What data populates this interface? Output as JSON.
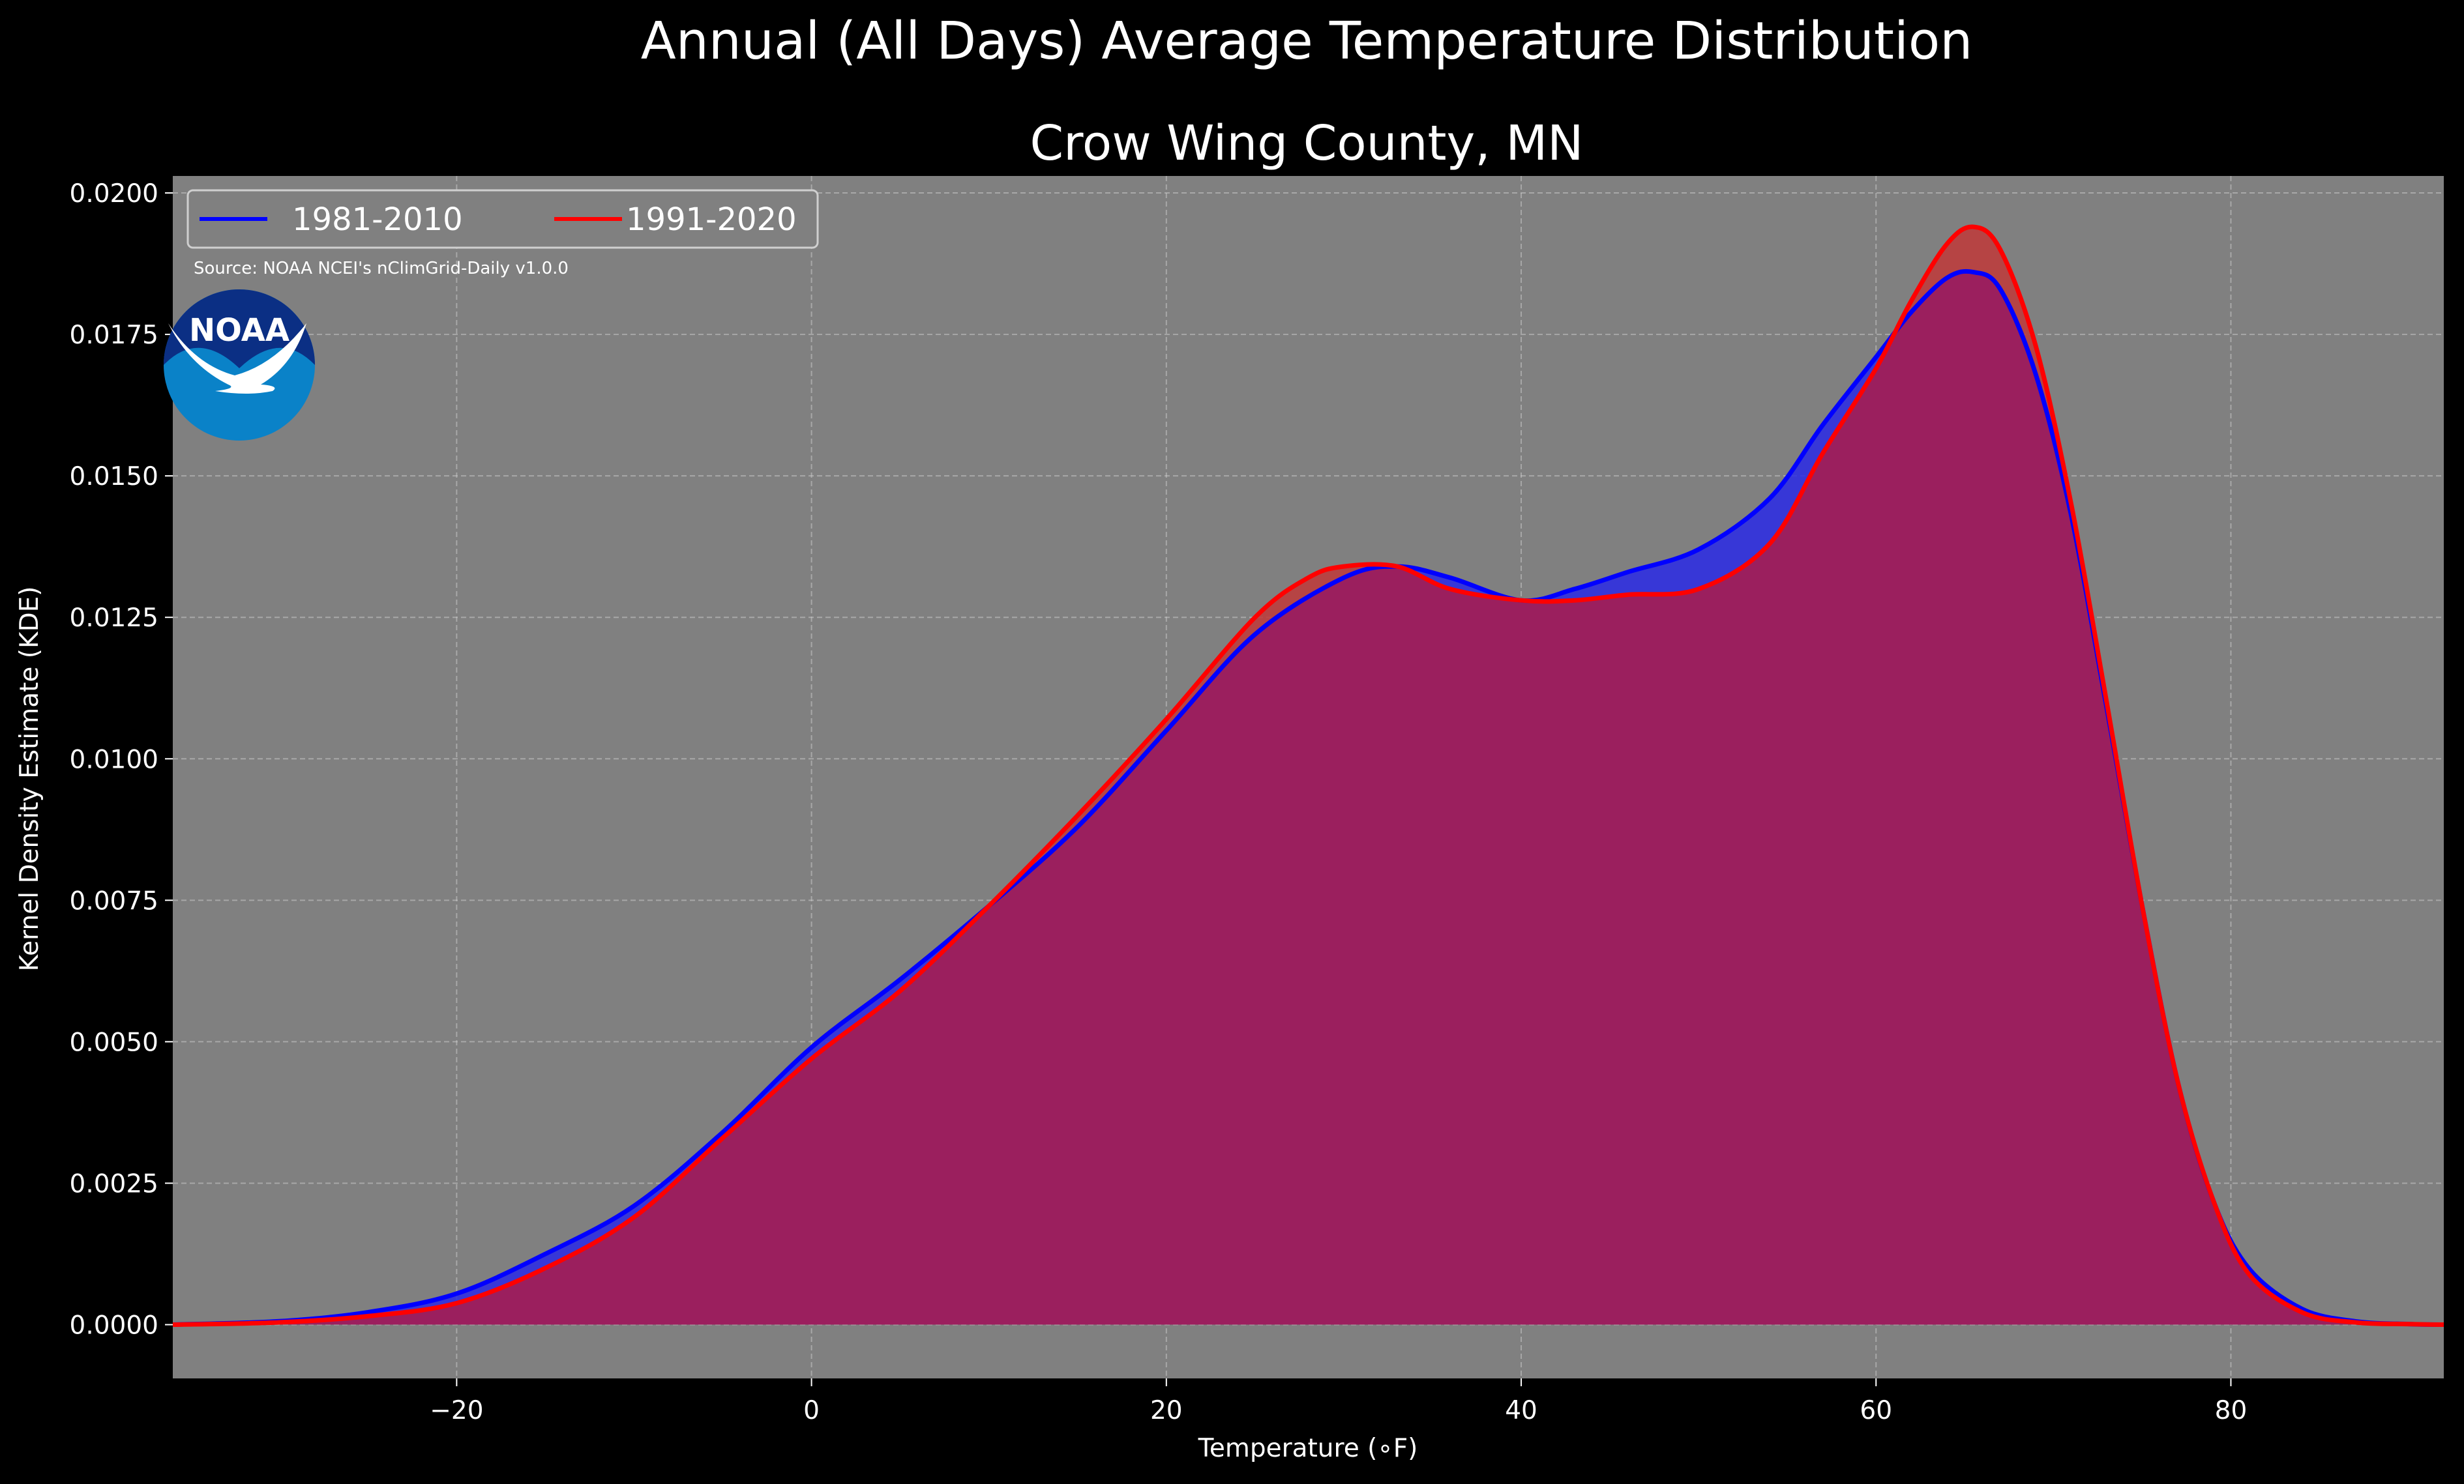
{
  "chart_data": {
    "type": "area",
    "title": "Annual (All Days) Average Temperature Distribution",
    "subtitle": "Crow Wing County, MN",
    "xlabel": "Temperature (∘F)",
    "ylabel": "Kernel Density Estimate (KDE)",
    "xlim": [
      -36,
      92
    ],
    "ylim": [
      -0.00095,
      0.0203
    ],
    "x_ticks": [
      -20,
      0,
      20,
      40,
      60,
      80
    ],
    "x_tick_labels": [
      "−20",
      "0",
      "20",
      "40",
      "60",
      "80"
    ],
    "y_ticks": [
      0.0,
      0.0025,
      0.005,
      0.0075,
      0.01,
      0.0125,
      0.015,
      0.0175,
      0.02
    ],
    "y_tick_labels": [
      "0.0000",
      "0.0025",
      "0.0050",
      "0.0075",
      "0.0100",
      "0.0125",
      "0.0150",
      "0.0175",
      "0.0200"
    ],
    "grid": true,
    "legend_position": "top-left",
    "source_note": "Source: NOAA NCEI's nClimGrid-Daily v1.0.0",
    "logo_text": "NOAA",
    "series": [
      {
        "name": "1981-2010",
        "color": "#0000ff",
        "fill": "#2a2ae6",
        "x": [
          -36,
          -30,
          -25,
          -20,
          -15,
          -10,
          -5,
          0,
          5,
          10,
          15,
          20,
          25,
          30,
          33,
          36,
          40,
          43,
          46,
          50,
          54,
          57,
          60,
          62,
          64,
          65.5,
          67,
          69,
          71,
          73,
          75,
          77,
          79,
          81,
          84,
          87,
          90,
          92
        ],
        "values": [
          0.0,
          6e-05,
          0.00022,
          0.00055,
          0.00125,
          0.0021,
          0.0034,
          0.0049,
          0.0061,
          0.0074,
          0.0088,
          0.0105,
          0.0122,
          0.0132,
          0.0134,
          0.0132,
          0.0128,
          0.013,
          0.0133,
          0.0137,
          0.0146,
          0.0159,
          0.0171,
          0.0179,
          0.0185,
          0.0186,
          0.0183,
          0.0168,
          0.0143,
          0.0109,
          0.0074,
          0.0043,
          0.0022,
          0.001,
          0.00028,
          6e-05,
          1e-05,
          0.0
        ]
      },
      {
        "name": "1991-2020",
        "color": "#ff0000",
        "fill": "#c03a3a",
        "x": [
          -36,
          -30,
          -25,
          -20,
          -15,
          -10,
          -5,
          0,
          5,
          10,
          15,
          20,
          25,
          28,
          30,
          33,
          36,
          40,
          43,
          46,
          50,
          54,
          57,
          60,
          62,
          64,
          65.5,
          67,
          69,
          71,
          73,
          75,
          77,
          79,
          81,
          84,
          87,
          90,
          92
        ],
        "values": [
          0.0,
          4e-05,
          0.00015,
          0.00038,
          0.001,
          0.0019,
          0.0033,
          0.0047,
          0.0059,
          0.0074,
          0.009,
          0.0107,
          0.0125,
          0.0132,
          0.0134,
          0.0134,
          0.013,
          0.0128,
          0.0128,
          0.0129,
          0.013,
          0.0138,
          0.0154,
          0.0169,
          0.0181,
          0.0191,
          0.0194,
          0.019,
          0.0173,
          0.0145,
          0.011,
          0.0074,
          0.0043,
          0.0022,
          0.0009,
          0.00022,
          4e-05,
          1e-05,
          0.0
        ]
      }
    ],
    "overlap_fill": "#9b1f5e"
  }
}
